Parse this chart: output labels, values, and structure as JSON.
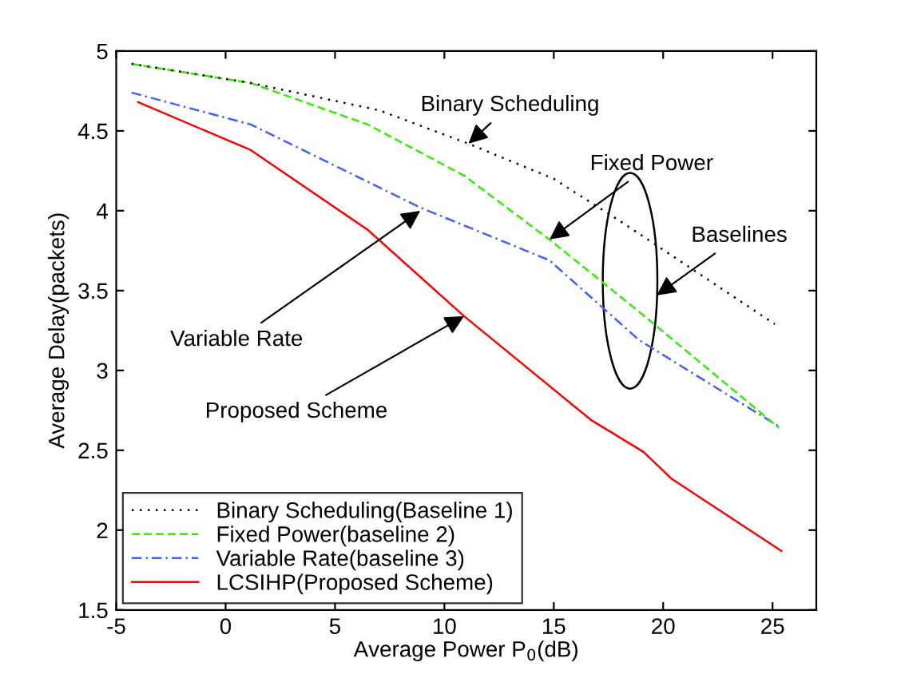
{
  "chart_data": {
    "type": "line",
    "xlabel": "Average Power P$_{0}$(dB)",
    "ylabel": "Average Delay(packets)",
    "xlim": [
      -5,
      27
    ],
    "xticks": [
      -5,
      0,
      5,
      10,
      15,
      20,
      25
    ],
    "ylim": [
      1.5,
      5
    ],
    "yticks": [
      1.5,
      2,
      2.5,
      3,
      3.5,
      4,
      4.5,
      5
    ],
    "grid": false,
    "legend": "bottom left",
    "marker": "none",
    "series": [
      {
        "name": "Binary Scheduling(Baseline 1)",
        "color": "#000000",
        "line_style": "dotted",
        "x": [
          -4.3,
          1.15,
          7,
          11.1,
          15,
          18.2,
          25.1
        ],
        "values": [
          4.92,
          4.8,
          4.63,
          4.42,
          4.2,
          3.92,
          3.29
        ]
      },
      {
        "name": "Fixed Power(baseline 2)",
        "color": "#33ee00",
        "line_style": "dashed",
        "x": [
          -4.3,
          1.15,
          6.5,
          10.9,
          14.8,
          18.7,
          25.3
        ],
        "values": [
          4.92,
          4.8,
          4.54,
          4.22,
          3.82,
          3.39,
          2.64
        ]
      },
      {
        "name": "Variable Rate(baseline 3)",
        "color": "#4060ff",
        "line_style": "dashdot",
        "x": [
          -4.3,
          1.15,
          8.9,
          14.8,
          18.9,
          25.4
        ],
        "values": [
          4.74,
          4.54,
          4.02,
          3.69,
          3.19,
          2.64
        ]
      },
      {
        "name": "LCSIHP(Proposed Scheme)",
        "color": "#ff0000",
        "line_style": "solid",
        "x": [
          -4,
          1.15,
          6.5,
          10.9,
          16.7,
          19.1,
          20.4,
          25.4
        ],
        "values": [
          4.68,
          4.38,
          3.88,
          3.34,
          2.69,
          2.49,
          2.32,
          1.87
        ]
      }
    ],
    "annotations": [
      {
        "text": "Binary Scheduling",
        "x": 11.1,
        "y": 4.42
      },
      {
        "text": "Fixed Power",
        "x": 14.8,
        "y": 3.82
      },
      "Baselines",
      {
        "text": "Variable Rate",
        "x": 8.9,
        "y": 4.0
      },
      {
        "text": "Proposed Scheme",
        "x": 10.9,
        "y": 3.34
      }
    ]
  }
}
